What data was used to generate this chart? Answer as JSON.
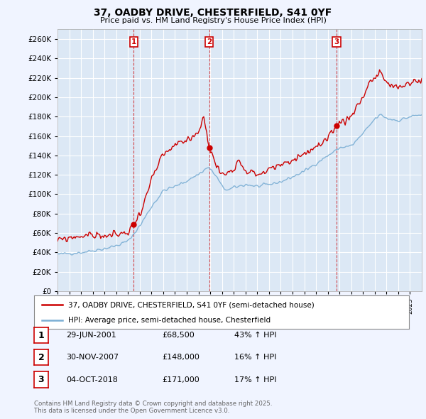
{
  "title_line1": "37, OADBY DRIVE, CHESTERFIELD, S41 0YF",
  "title_line2": "Price paid vs. HM Land Registry's House Price Index (HPI)",
  "background_color": "#f0f4ff",
  "plot_background": "#dce8f5",
  "grid_color": "#ffffff",
  "red_color": "#cc0000",
  "blue_color": "#7aaed4",
  "ylim": [
    0,
    270000
  ],
  "yticks": [
    0,
    20000,
    40000,
    60000,
    80000,
    100000,
    120000,
    140000,
    160000,
    180000,
    200000,
    220000,
    240000,
    260000
  ],
  "sale_dates": [
    2001.49,
    2007.91,
    2018.75
  ],
  "sale_prices": [
    68500,
    148000,
    171000
  ],
  "sale_labels": [
    "1",
    "2",
    "3"
  ],
  "legend_entries": [
    "37, OADBY DRIVE, CHESTERFIELD, S41 0YF (semi-detached house)",
    "HPI: Average price, semi-detached house, Chesterfield"
  ],
  "table_rows": [
    [
      "1",
      "29-JUN-2001",
      "£68,500",
      "43% ↑ HPI"
    ],
    [
      "2",
      "30-NOV-2007",
      "£148,000",
      "16% ↑ HPI"
    ],
    [
      "3",
      "04-OCT-2018",
      "£171,000",
      "17% ↑ HPI"
    ]
  ],
  "footnote": "Contains HM Land Registry data © Crown copyright and database right 2025.\nThis data is licensed under the Open Government Licence v3.0.",
  "xmin": 1995,
  "xmax": 2026
}
